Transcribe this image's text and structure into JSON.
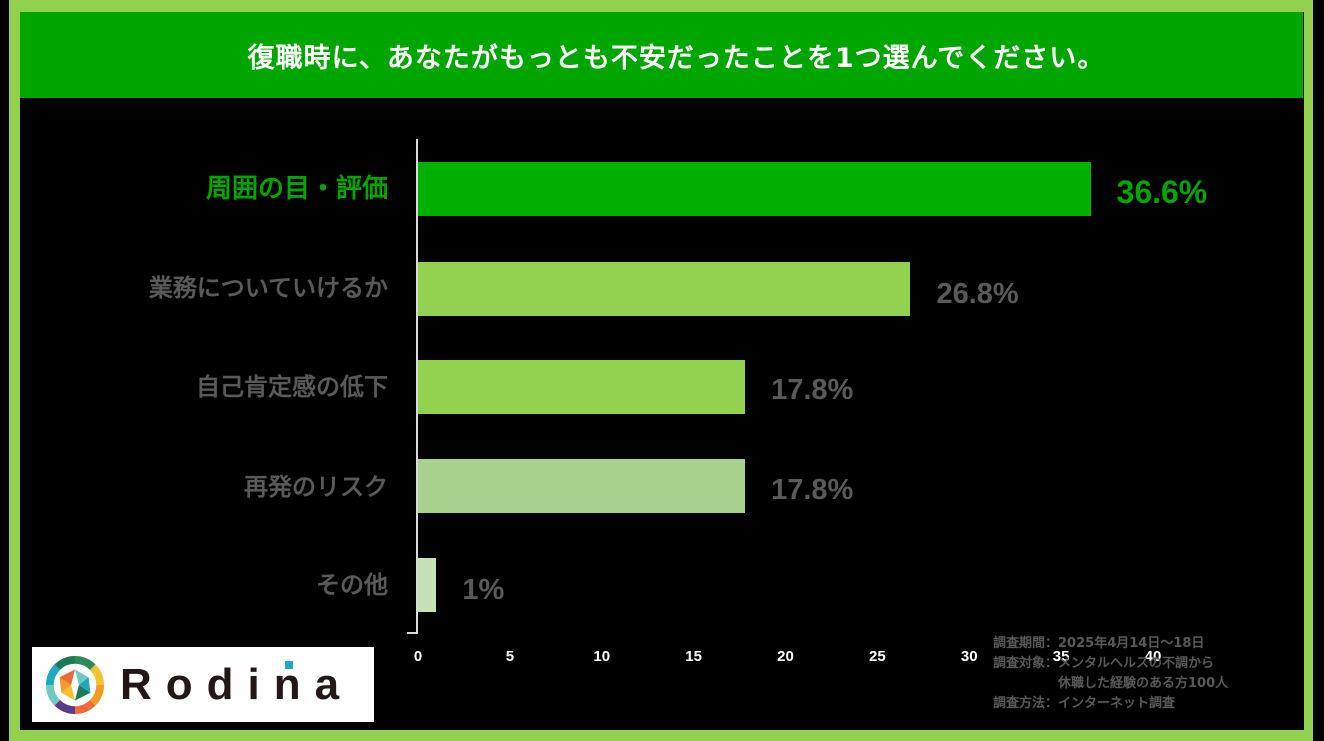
{
  "header": {
    "title": "復職時に、あなたがもっとも不安だったことを1つ選んでください。"
  },
  "colors": {
    "frame": "#92d050",
    "title_bar": "#00a500",
    "background": "#000000",
    "highlight_text": "#00a500",
    "label_text": "#595959",
    "bars": [
      "#00b000",
      "#92d050",
      "#92d050",
      "#a9d18e",
      "#c5e0b4"
    ]
  },
  "chart_data": {
    "type": "bar",
    "orientation": "horizontal",
    "title": "復職時に、あなたがもっとも不安だったことを1つ選んでください。",
    "categories": [
      "周囲の目・評価",
      "業務についていけるか",
      "自己肯定感の低下",
      "再発のリスク",
      "その他"
    ],
    "values": [
      36.6,
      26.8,
      17.8,
      17.8,
      1
    ],
    "value_labels": [
      "36.6%",
      "26.8%",
      "17.8%",
      "17.8%",
      "1%"
    ],
    "xlabel": "",
    "ylabel": "",
    "xlim": [
      0,
      40
    ],
    "x_ticks": [
      "0",
      "5",
      "10",
      "15",
      "20",
      "25",
      "30",
      "35",
      "40"
    ],
    "grid": false,
    "legend": null
  },
  "survey_note": {
    "period_label": "調査期間：",
    "period_value": "2025年4月14日～18日",
    "target_label": "調査対象：",
    "target_value_line1": "メンタルヘルスの不調から",
    "target_value_line2": "休職した経験のある方100人",
    "method_label": "調査方法：",
    "method_value": "インターネット調査"
  },
  "logo": {
    "wordmark": "Rodina"
  }
}
